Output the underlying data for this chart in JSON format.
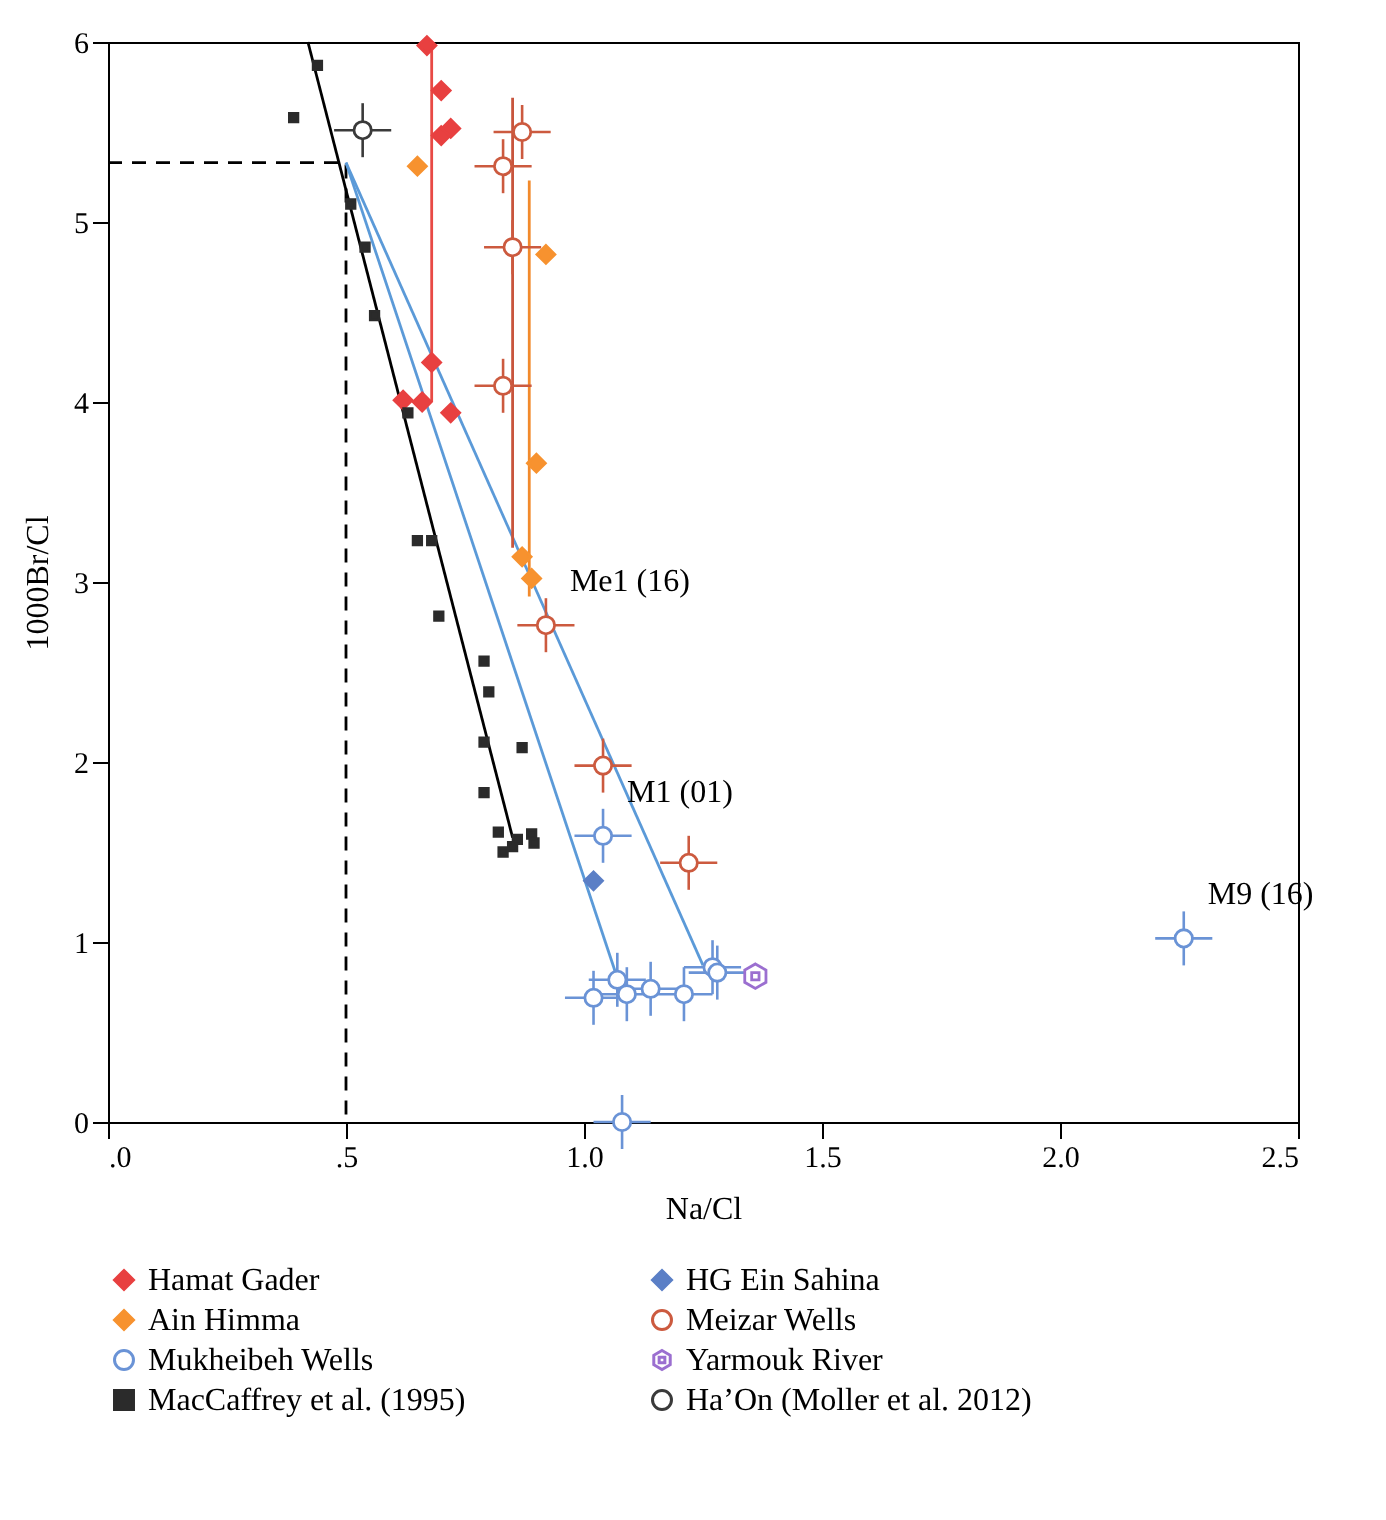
{
  "chart_data": {
    "type": "scatter",
    "xlabel": "Na/Cl",
    "ylabel": "1000Br/Cl",
    "xlim": [
      0,
      2.5
    ],
    "ylim": [
      0,
      6
    ],
    "xticks": [
      {
        "value": 0,
        "label": ".0"
      },
      {
        "value": 0.5,
        "label": ".5"
      },
      {
        "value": 1,
        "label": "1.0"
      },
      {
        "value": 1.5,
        "label": "1.5"
      },
      {
        "value": 2,
        "label": "2.0"
      },
      {
        "value": 2.5,
        "label": "2.5"
      }
    ],
    "yticks": [
      0,
      1,
      2,
      3,
      4,
      5,
      6
    ],
    "grid": false,
    "legend": "bottom",
    "annotations": [
      {
        "text": "Me1 (16)",
        "x": 0.92,
        "y": 2.76
      },
      {
        "text": "M1 (01)",
        "x": 1.04,
        "y": 1.59
      },
      {
        "text": "M9 (16)",
        "x": 2.26,
        "y": 1.02
      }
    ],
    "series": [
      {
        "type": "line",
        "color": "#000000",
        "line_style": "dashed",
        "x": [
          0,
          0.5,
          0.5
        ],
        "values": [
          5.33,
          5.33,
          0
        ]
      },
      {
        "type": "line",
        "color": "#000000",
        "line_style": "solid",
        "x": [
          0.42,
          0.85
        ],
        "values": [
          6,
          1.58
        ]
      },
      {
        "type": "line",
        "color": "#5b9ad8",
        "line_style": "solid",
        "x": [
          0.5,
          1.07
        ],
        "values": [
          5.33,
          0.8
        ]
      },
      {
        "type": "line",
        "color": "#5b9ad8",
        "line_style": "solid",
        "x": [
          0.5,
          1.25
        ],
        "values": [
          5.33,
          0.87
        ]
      },
      {
        "type": "line",
        "color": "#e84a45",
        "line_style": "solid",
        "x": [
          0.68,
          0.68
        ],
        "values": [
          6,
          4
        ]
      },
      {
        "type": "line",
        "color": "#c8553d",
        "line_style": "solid",
        "x": [
          0.85,
          0.85
        ],
        "values": [
          5.69,
          3.19
        ]
      },
      {
        "type": "line",
        "color": "#f28a2c",
        "line_style": "solid",
        "x": [
          0.885,
          0.885
        ],
        "values": [
          5.23,
          2.92
        ]
      },
      {
        "name": "Hamat Gader",
        "color": "#e84040",
        "marker": "diamond",
        "x": [
          0.67,
          0.7,
          0.7,
          0.72,
          0.68,
          0.62,
          0.66,
          0.72
        ],
        "values": [
          5.98,
          5.73,
          5.48,
          5.52,
          4.22,
          4.01,
          4,
          3.94
        ]
      },
      {
        "name": "HG Ein Sahina",
        "color": "#5b7fc6",
        "marker": "diamond",
        "x": [
          1.02
        ],
        "values": [
          1.34
        ]
      },
      {
        "name": "Ain Himma",
        "color": "#f7922f",
        "marker": "diamond",
        "x": [
          0.65,
          0.92,
          0.9,
          0.87,
          0.89
        ],
        "values": [
          5.31,
          4.82,
          3.66,
          3.14,
          3.02
        ]
      },
      {
        "name": "Meizar Wells",
        "color": "#cc5a3f",
        "marker": "circle",
        "x": [
          0.87,
          0.83,
          0.85,
          0.83,
          0.92,
          1.04,
          1.22
        ],
        "values": [
          5.5,
          5.31,
          4.86,
          4.09,
          2.76,
          1.98,
          1.44
        ],
        "xerrors": [
          0.06,
          0.06,
          0.06,
          0.06,
          0.06,
          0.06,
          0.06
        ],
        "errors": [
          0.15,
          0.15,
          0.15,
          0.15,
          0.15,
          0.15,
          0.15
        ]
      },
      {
        "name": "Mukheibeh Wells",
        "color": "#6a93d6",
        "marker": "circle",
        "x": [
          1.04,
          1.02,
          1.07,
          1.09,
          1.14,
          1.21,
          1.27,
          1.28,
          1.08,
          2.26
        ],
        "values": [
          1.59,
          0.69,
          0.79,
          0.71,
          0.74,
          0.71,
          0.86,
          0.83,
          0,
          1.02
        ],
        "xerrors": [
          0.06,
          0.06,
          0.06,
          0.06,
          0.06,
          0.06,
          0.06,
          0.06,
          0.06,
          0.06
        ],
        "errors": [
          0.15,
          0.15,
          0.15,
          0.15,
          0.15,
          0.15,
          0.15,
          0.15,
          0.15,
          0.15
        ]
      },
      {
        "name": "Yarmouk River",
        "color": "#9b6fd0",
        "x": [
          1.36
        ],
        "values": [
          0.81
        ]
      },
      {
        "name": "MacCaffrey et al. (1995)",
        "color": "#2b2b2b",
        "marker": "square",
        "x": [
          0.39,
          0.44,
          0.51,
          0.54,
          0.56,
          0.63,
          0.65,
          0.68,
          0.695,
          0.79,
          0.8,
          0.79,
          0.79,
          0.87,
          0.82,
          0.83,
          0.85,
          0.86,
          0.89,
          0.895
        ],
        "values": [
          5.58,
          5.87,
          5.1,
          4.86,
          4.48,
          3.94,
          3.23,
          3.23,
          2.81,
          2.56,
          2.39,
          2.11,
          1.83,
          2.08,
          1.61,
          1.5,
          1.53,
          1.57,
          1.6,
          1.55
        ]
      },
      {
        "name": "Ha’On (Moller et al. 2012)",
        "color": "#3a3a3a",
        "marker": "circle",
        "x": [
          0.535
        ],
        "values": [
          5.51
        ],
        "xerrors": [
          0.06
        ],
        "errors": [
          0.15
        ]
      }
    ]
  }
}
